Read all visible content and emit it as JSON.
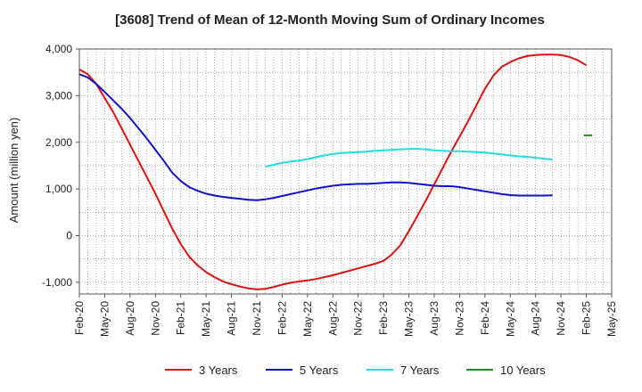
{
  "chart_data": {
    "type": "line",
    "title": "[3608]  Trend of Mean of 12-Month Moving Sum of Ordinary Incomes",
    "xlabel": "",
    "ylabel": "Amount (million yen)",
    "ylim": [
      -1250,
      4000
    ],
    "yticks": [
      -1000,
      0,
      1000,
      2000,
      3000,
      4000
    ],
    "ytick_labels": [
      "-1,000",
      "0",
      "1,000",
      "2,000",
      "3,000",
      "4,000"
    ],
    "xlim": [
      0,
      63
    ],
    "xtick_positions": [
      0,
      3,
      6,
      9,
      12,
      15,
      18,
      21,
      24,
      27,
      30,
      33,
      36,
      39,
      42,
      45,
      48,
      51,
      54,
      57,
      60,
      63
    ],
    "xtick_labels": [
      "Feb-20",
      "May-20",
      "Aug-20",
      "Nov-20",
      "Feb-21",
      "May-21",
      "Aug-21",
      "Nov-21",
      "Feb-22",
      "May-22",
      "Aug-22",
      "Nov-22",
      "Feb-23",
      "May-23",
      "Aug-23",
      "Nov-23",
      "Feb-24",
      "May-24",
      "Aug-24",
      "Nov-24",
      "Feb-25",
      "May-25"
    ],
    "grid": true,
    "legend_position": "bottom",
    "series": [
      {
        "name": "3 Years",
        "color": "#dd1111",
        "points": [
          [
            0,
            3560
          ],
          [
            1,
            3460
          ],
          [
            2,
            3250
          ],
          [
            3,
            2950
          ],
          [
            4,
            2650
          ],
          [
            5,
            2300
          ],
          [
            6,
            1950
          ],
          [
            7,
            1600
          ],
          [
            8,
            1250
          ],
          [
            9,
            900
          ],
          [
            10,
            520
          ],
          [
            11,
            150
          ],
          [
            12,
            -180
          ],
          [
            13,
            -450
          ],
          [
            14,
            -640
          ],
          [
            15,
            -780
          ],
          [
            16,
            -890
          ],
          [
            17,
            -980
          ],
          [
            18,
            -1040
          ],
          [
            19,
            -1090
          ],
          [
            20,
            -1130
          ],
          [
            21,
            -1150
          ],
          [
            22,
            -1140
          ],
          [
            23,
            -1100
          ],
          [
            24,
            -1050
          ],
          [
            25,
            -1010
          ],
          [
            26,
            -980
          ],
          [
            27,
            -960
          ],
          [
            28,
            -930
          ],
          [
            29,
            -890
          ],
          [
            30,
            -850
          ],
          [
            31,
            -800
          ],
          [
            32,
            -750
          ],
          [
            33,
            -700
          ],
          [
            34,
            -650
          ],
          [
            35,
            -600
          ],
          [
            36,
            -540
          ],
          [
            37,
            -400
          ],
          [
            38,
            -200
          ],
          [
            39,
            100
          ],
          [
            40,
            420
          ],
          [
            41,
            750
          ],
          [
            42,
            1100
          ],
          [
            43,
            1450
          ],
          [
            44,
            1800
          ],
          [
            45,
            2120
          ],
          [
            46,
            2450
          ],
          [
            47,
            2800
          ],
          [
            48,
            3150
          ],
          [
            49,
            3430
          ],
          [
            50,
            3620
          ],
          [
            51,
            3720
          ],
          [
            52,
            3800
          ],
          [
            53,
            3850
          ],
          [
            54,
            3870
          ],
          [
            55,
            3880
          ],
          [
            56,
            3880
          ],
          [
            57,
            3870
          ],
          [
            58,
            3830
          ],
          [
            59,
            3760
          ],
          [
            60,
            3650
          ]
        ]
      },
      {
        "name": "5 Years",
        "color": "#1111cc",
        "points": [
          [
            0,
            3460
          ],
          [
            1,
            3390
          ],
          [
            2,
            3250
          ],
          [
            3,
            3080
          ],
          [
            4,
            2900
          ],
          [
            5,
            2720
          ],
          [
            6,
            2520
          ],
          [
            7,
            2300
          ],
          [
            8,
            2080
          ],
          [
            9,
            1840
          ],
          [
            10,
            1600
          ],
          [
            11,
            1350
          ],
          [
            12,
            1170
          ],
          [
            13,
            1040
          ],
          [
            14,
            960
          ],
          [
            15,
            900
          ],
          [
            16,
            860
          ],
          [
            17,
            830
          ],
          [
            18,
            810
          ],
          [
            19,
            790
          ],
          [
            20,
            770
          ],
          [
            21,
            760
          ],
          [
            22,
            780
          ],
          [
            23,
            810
          ],
          [
            24,
            850
          ],
          [
            25,
            890
          ],
          [
            26,
            930
          ],
          [
            27,
            970
          ],
          [
            28,
            1010
          ],
          [
            29,
            1040
          ],
          [
            30,
            1070
          ],
          [
            31,
            1090
          ],
          [
            32,
            1100
          ],
          [
            33,
            1110
          ],
          [
            34,
            1110
          ],
          [
            35,
            1120
          ],
          [
            36,
            1130
          ],
          [
            37,
            1140
          ],
          [
            38,
            1140
          ],
          [
            39,
            1130
          ],
          [
            40,
            1110
          ],
          [
            41,
            1090
          ],
          [
            42,
            1070
          ],
          [
            43,
            1060
          ],
          [
            44,
            1060
          ],
          [
            45,
            1040
          ],
          [
            46,
            1010
          ],
          [
            47,
            980
          ],
          [
            48,
            950
          ],
          [
            49,
            920
          ],
          [
            50,
            890
          ],
          [
            51,
            870
          ],
          [
            52,
            860
          ],
          [
            53,
            860
          ],
          [
            54,
            860
          ],
          [
            55,
            860
          ],
          [
            56,
            865
          ]
        ]
      },
      {
        "name": "7 Years",
        "color": "#22dddd",
        "points": [
          [
            22,
            1480
          ],
          [
            23,
            1520
          ],
          [
            24,
            1560
          ],
          [
            25,
            1590
          ],
          [
            26,
            1610
          ],
          [
            27,
            1640
          ],
          [
            28,
            1680
          ],
          [
            29,
            1720
          ],
          [
            30,
            1750
          ],
          [
            31,
            1770
          ],
          [
            32,
            1780
          ],
          [
            33,
            1790
          ],
          [
            34,
            1800
          ],
          [
            35,
            1820
          ],
          [
            36,
            1830
          ],
          [
            37,
            1840
          ],
          [
            38,
            1850
          ],
          [
            39,
            1860
          ],
          [
            40,
            1860
          ],
          [
            41,
            1850
          ],
          [
            42,
            1830
          ],
          [
            43,
            1820
          ],
          [
            44,
            1810
          ],
          [
            45,
            1810
          ],
          [
            46,
            1800
          ],
          [
            47,
            1790
          ],
          [
            48,
            1780
          ],
          [
            49,
            1760
          ],
          [
            50,
            1740
          ],
          [
            51,
            1720
          ],
          [
            52,
            1700
          ],
          [
            53,
            1690
          ],
          [
            54,
            1670
          ],
          [
            55,
            1650
          ],
          [
            56,
            1630
          ]
        ]
      },
      {
        "name": "10 Years",
        "color": "#228822",
        "points": [
          [
            59.7,
            2150
          ],
          [
            60.7,
            2150
          ]
        ]
      }
    ]
  }
}
